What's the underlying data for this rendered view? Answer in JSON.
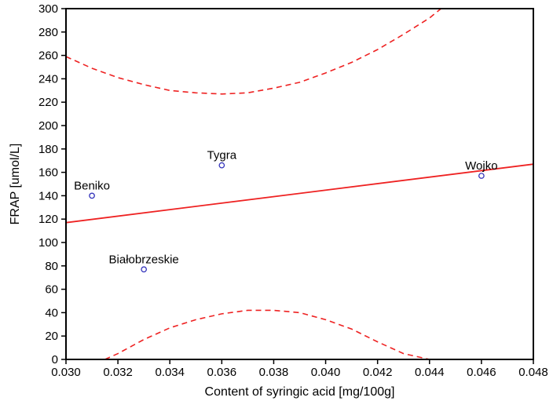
{
  "chart_data": {
    "type": "scatter",
    "title": "",
    "xlabel": "Content of syringic acid [mg/100g]",
    "ylabel": "FRAP [umol/L]",
    "xlim": [
      0.03,
      0.048
    ],
    "ylim": [
      0,
      300
    ],
    "xticks": [
      0.03,
      0.032,
      0.034,
      0.036,
      0.038,
      0.04,
      0.042,
      0.044,
      0.046,
      0.048
    ],
    "yticks": [
      0,
      20,
      40,
      60,
      80,
      100,
      120,
      140,
      160,
      180,
      200,
      220,
      240,
      260,
      280,
      300
    ],
    "grid": false,
    "legend": false,
    "points": [
      {
        "label": "Beniko",
        "x": 0.031,
        "y": 140
      },
      {
        "label": "Białobrzeskie",
        "x": 0.033,
        "y": 77
      },
      {
        "label": "Tygra",
        "x": 0.036,
        "y": 166
      },
      {
        "label": "Wojko",
        "x": 0.046,
        "y": 157
      }
    ],
    "regression_line": {
      "x": [
        0.03,
        0.048
      ],
      "y": [
        117,
        167
      ]
    },
    "confidence_band_upper": [
      [
        0.03,
        259
      ],
      [
        0.031,
        249
      ],
      [
        0.032,
        241
      ],
      [
        0.033,
        235
      ],
      [
        0.034,
        230
      ],
      [
        0.035,
        228
      ],
      [
        0.036,
        227
      ],
      [
        0.037,
        228
      ],
      [
        0.038,
        232
      ],
      [
        0.039,
        237
      ],
      [
        0.04,
        245
      ],
      [
        0.041,
        254
      ],
      [
        0.042,
        265
      ],
      [
        0.043,
        278
      ],
      [
        0.044,
        292
      ],
      [
        0.0445,
        301
      ]
    ],
    "confidence_band_lower": [
      [
        0.0315,
        0
      ],
      [
        0.032,
        5
      ],
      [
        0.033,
        17
      ],
      [
        0.034,
        27
      ],
      [
        0.035,
        34
      ],
      [
        0.036,
        39
      ],
      [
        0.037,
        42
      ],
      [
        0.038,
        42
      ],
      [
        0.039,
        40
      ],
      [
        0.04,
        34
      ],
      [
        0.041,
        26
      ],
      [
        0.042,
        15
      ],
      [
        0.043,
        5
      ],
      [
        0.044,
        0
      ]
    ],
    "colors": {
      "regression_line": "#ee2222",
      "confidence_band": "#ee2222",
      "point_stroke": "#3333bb",
      "frame": "#000000",
      "text": "#000000",
      "background": "#ffffff"
    }
  }
}
